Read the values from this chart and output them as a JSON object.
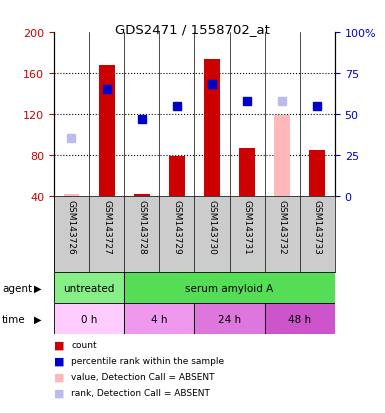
{
  "title": "GDS2471 / 1558702_at",
  "samples": [
    "GSM143726",
    "GSM143727",
    "GSM143728",
    "GSM143729",
    "GSM143730",
    "GSM143731",
    "GSM143732",
    "GSM143733"
  ],
  "bar_values": [
    42,
    168,
    42,
    79,
    174,
    87,
    null,
    85
  ],
  "absent_bar_values": [
    42,
    null,
    null,
    null,
    null,
    null,
    119,
    null
  ],
  "absent_bar_color": "#ffb8b8",
  "rank_values": [
    null,
    65,
    47,
    55,
    68,
    58,
    null,
    55
  ],
  "absent_rank_values": [
    35,
    null,
    null,
    null,
    null,
    null,
    58,
    null
  ],
  "absent_rank_color": "#bbbbee",
  "ylim_left": [
    40,
    200
  ],
  "ylim_right": [
    0,
    100
  ],
  "yticks_left": [
    40,
    80,
    120,
    160,
    200
  ],
  "yticks_right": [
    0,
    25,
    50,
    75,
    100
  ],
  "ytick_labels_right": [
    "0",
    "25",
    "50",
    "75",
    "100%"
  ],
  "agent_groups": [
    {
      "label": "untreated",
      "color": "#88ee88",
      "start": 0,
      "end": 2
    },
    {
      "label": "serum amyloid A",
      "color": "#55dd55",
      "start": 2,
      "end": 8
    }
  ],
  "time_groups": [
    {
      "label": "0 h",
      "color": "#ffccff",
      "start": 0,
      "end": 2
    },
    {
      "label": "4 h",
      "color": "#ee99ee",
      "start": 2,
      "end": 4
    },
    {
      "label": "24 h",
      "color": "#dd77dd",
      "start": 4,
      "end": 6
    },
    {
      "label": "48 h",
      "color": "#cc55cc",
      "start": 6,
      "end": 8
    }
  ],
  "legend_items": [
    {
      "label": "count",
      "color": "#cc0000"
    },
    {
      "label": "percentile rank within the sample",
      "color": "#0000cc"
    },
    {
      "label": "value, Detection Call = ABSENT",
      "color": "#ffb8b8"
    },
    {
      "label": "rank, Detection Call = ABSENT",
      "color": "#bbbbee"
    }
  ],
  "bar_width": 0.45,
  "marker_size": 6,
  "red_bar_color": "#cc0000",
  "blue_marker_color": "#0000cc",
  "left_axis_color": "#cc0000",
  "right_axis_color": "#0000cc",
  "background_color": "#ffffff",
  "sample_bg_color": "#cccccc"
}
